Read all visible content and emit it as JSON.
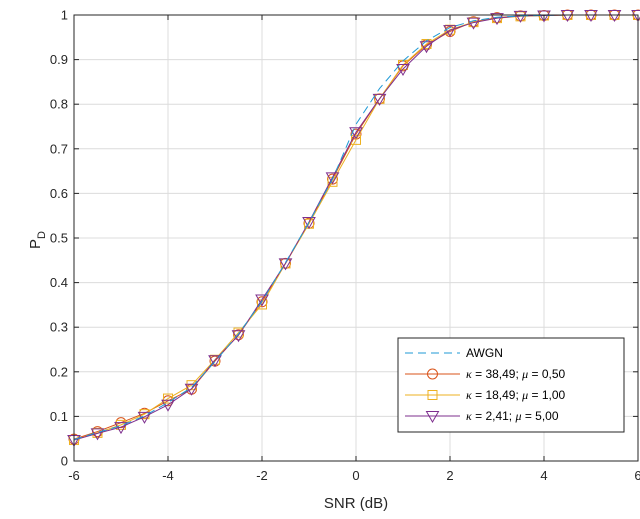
{
  "chart_data": {
    "type": "line",
    "xlabel": "SNR (dB)",
    "ylabel_main": "P",
    "ylabel_sub": "D",
    "xlim": [
      -6,
      6
    ],
    "ylim": [
      0,
      1
    ],
    "x_ticks": [
      "-6",
      "-4",
      "-2",
      "0",
      "2",
      "4",
      "6"
    ],
    "y_ticks": [
      "0",
      "0.1",
      "0.2",
      "0.3",
      "0.4",
      "0.5",
      "0.6",
      "0.7",
      "0.8",
      "0.9",
      "1"
    ],
    "grid": true,
    "legend_position": "bottom-right",
    "x": [
      -6,
      -5.5,
      -5,
      -4.5,
      -4,
      -3.5,
      -3,
      -2.5,
      -2,
      -1.5,
      -1,
      -0.5,
      0,
      0.5,
      1,
      1.5,
      2,
      2.5,
      3,
      3.5,
      4,
      4.5,
      5,
      5.5,
      6
    ],
    "series": [
      {
        "name": "AWGN",
        "color": "#1f9ad6",
        "style": "dashed",
        "marker": "none",
        "values": [
          0.048,
          0.064,
          0.079,
          0.101,
          0.131,
          0.165,
          0.223,
          0.285,
          0.358,
          0.445,
          0.535,
          0.632,
          0.755,
          0.835,
          0.897,
          0.942,
          0.972,
          0.987,
          0.995,
          0.998,
          0.999,
          1.0,
          1.0,
          1.0,
          1.0
        ]
      },
      {
        "name_sym1": "κ",
        "name_val1": " = 38,49; ",
        "name_sym2": "μ",
        "name_val2": " = 0,50",
        "color": "#d95319",
        "style": "solid",
        "marker": "circle",
        "values": [
          0.049,
          0.066,
          0.086,
          0.107,
          0.135,
          0.161,
          0.224,
          0.283,
          0.357,
          0.443,
          0.533,
          0.632,
          0.733,
          0.812,
          0.886,
          0.933,
          0.963,
          0.985,
          0.994,
          0.998,
          0.999,
          1.0,
          1.0,
          1.0,
          1.0
        ]
      },
      {
        "name_sym1": "κ",
        "name_val1": " = 18,49; ",
        "name_sym2": "μ",
        "name_val2": " = 1,00",
        "color": "#edb120",
        "style": "solid",
        "marker": "square",
        "values": [
          0.047,
          0.063,
          0.081,
          0.105,
          0.14,
          0.17,
          0.227,
          0.288,
          0.351,
          0.443,
          0.532,
          0.626,
          0.72,
          0.812,
          0.888,
          0.935,
          0.967,
          0.984,
          0.993,
          0.997,
          0.999,
          1.0,
          1.0,
          1.0,
          1.0
        ]
      },
      {
        "name_sym1": "κ",
        "name_val1": " =   2,41; ",
        "name_sym2": "μ",
        "name_val2": " = 5,00",
        "color": "#7e2f8e",
        "style": "solid",
        "marker": "triangle-down",
        "values": [
          0.047,
          0.062,
          0.076,
          0.099,
          0.126,
          0.162,
          0.226,
          0.282,
          0.362,
          0.443,
          0.536,
          0.636,
          0.737,
          0.812,
          0.879,
          0.93,
          0.966,
          0.983,
          0.993,
          0.998,
          0.999,
          1.0,
          1.0,
          1.0,
          1.0
        ]
      }
    ]
  }
}
